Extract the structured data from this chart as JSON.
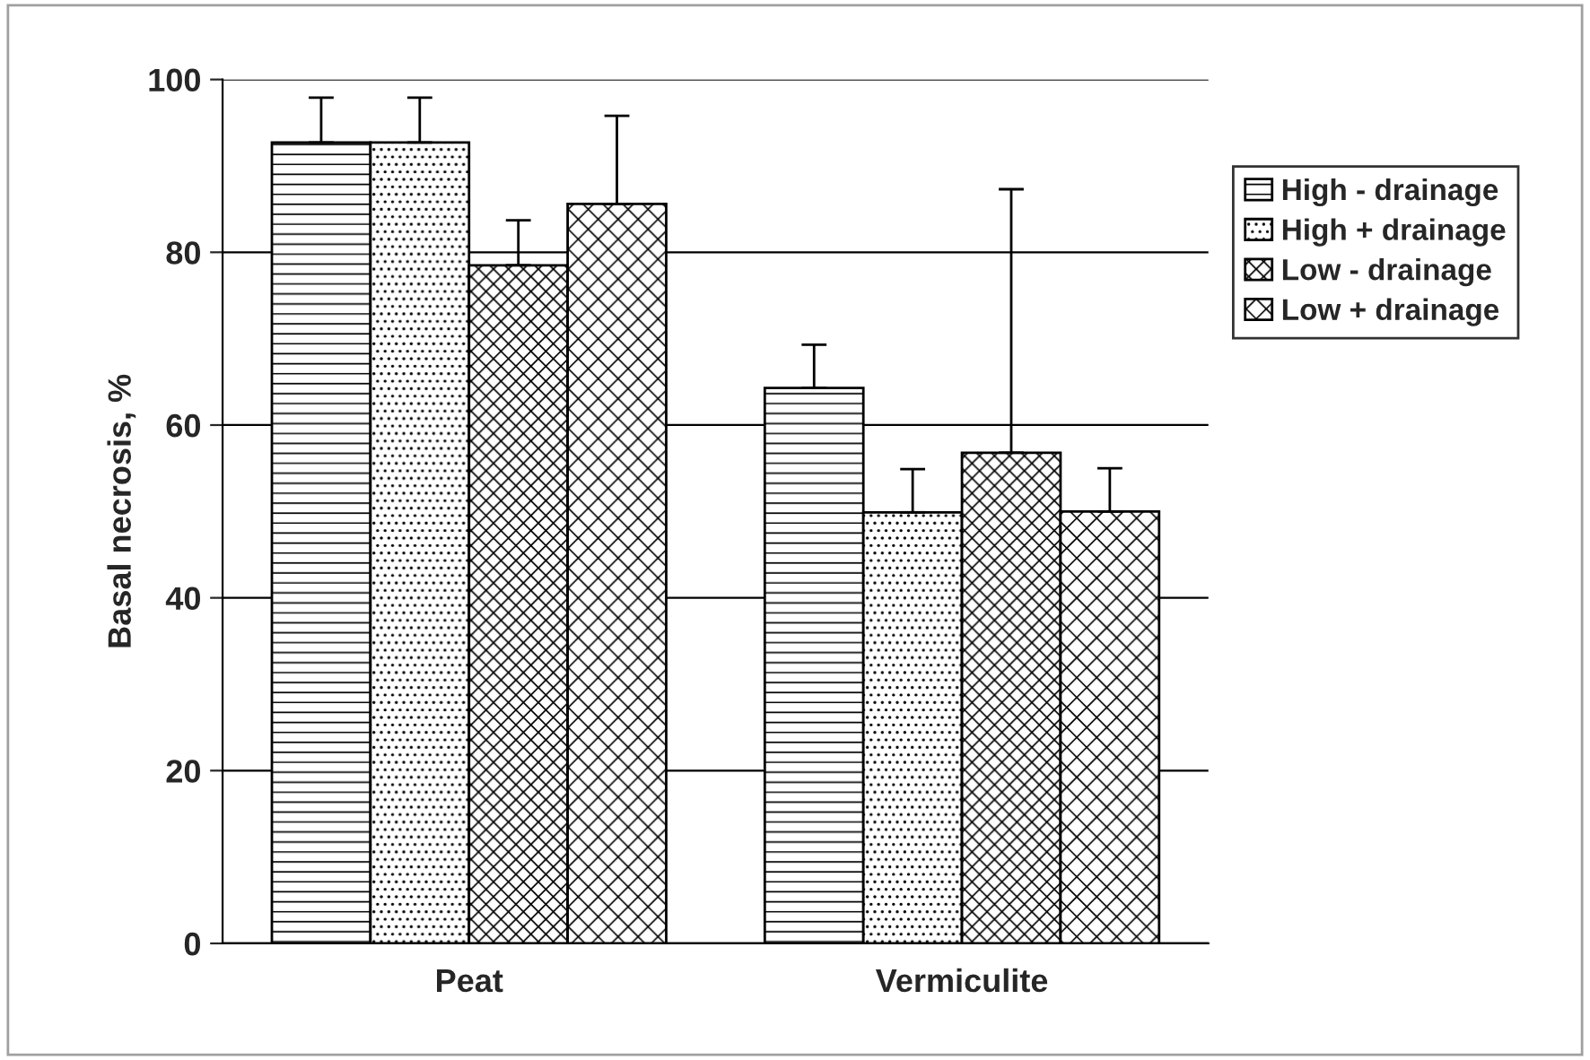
{
  "chart_data": {
    "type": "bar",
    "ylabel": "Basal necrosis, %",
    "categories": [
      "Peat",
      "Vermiculite"
    ],
    "series": [
      {
        "name": "High - drainage",
        "color": "#000000",
        "values": [
          92.7,
          64.3
        ],
        "errors": [
          [
            92.7,
            97.9
          ],
          [
            64.3,
            69.3
          ]
        ]
      },
      {
        "name": "High + drainage",
        "color": "#000000",
        "values": [
          92.7,
          49.9
        ],
        "errors": [
          [
            92.7,
            97.9
          ],
          [
            49.9,
            54.9
          ]
        ]
      },
      {
        "name": "Low - drainage",
        "color": "#000000",
        "values": [
          78.5,
          56.8
        ],
        "errors": [
          [
            78.5,
            83.7
          ],
          [
            56.8,
            87.3
          ]
        ]
      },
      {
        "name": "Low + drainage",
        "color": "#000000",
        "values": [
          85.6,
          50.0
        ],
        "errors": [
          [
            85.6,
            95.8
          ],
          [
            50.0,
            55.0
          ]
        ]
      }
    ],
    "ylim": [
      0,
      100
    ],
    "yticks": [
      0,
      20,
      40,
      60,
      80,
      100
    ],
    "grid": "y",
    "legend": "right"
  }
}
